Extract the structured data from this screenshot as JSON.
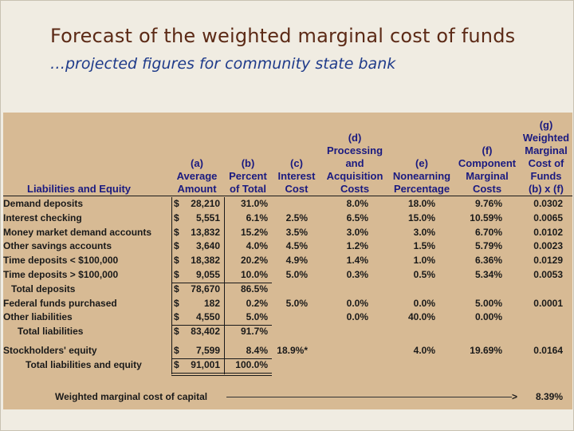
{
  "slide": {
    "title": "Forecast of the weighted marginal cost of funds",
    "subtitle": "…projected figures for community state bank"
  },
  "table": {
    "headers": {
      "label": "Liabilities and Equity",
      "a": "(a)\nAverage\nAmount",
      "b": "(b)\nPercent\nof Total",
      "c": "(c)\nInterest\nCost",
      "d": "(d)\nProcessing\nand\nAcquisition\nCosts",
      "e": "(e)\nNonearning\nPercentage",
      "f": "(f)\nComponent\nMarginal\nCosts",
      "g": "(g)\nWeighted\nMarginal\nCost of\nFunds\n(b) x (f)"
    },
    "rows": [
      {
        "label": "Demand deposits",
        "dollar": "$",
        "amount": "28,210",
        "pct": "31.0%",
        "interest": "",
        "processing": "8.0%",
        "nonearning": "18.0%",
        "component": "9.76%",
        "weighted": "0.0302"
      },
      {
        "label": "Interest checking",
        "dollar": "$",
        "amount": "5,551",
        "pct": "6.1%",
        "interest": "2.5%",
        "processing": "6.5%",
        "nonearning": "15.0%",
        "component": "10.59%",
        "weighted": "0.0065"
      },
      {
        "label": "Money market demand accounts",
        "dollar": "$",
        "amount": "13,832",
        "pct": "15.2%",
        "interest": "3.5%",
        "processing": "3.0%",
        "nonearning": "3.0%",
        "component": "6.70%",
        "weighted": "0.0102"
      },
      {
        "label": "Other savings accounts",
        "dollar": "$",
        "amount": "3,640",
        "pct": "4.0%",
        "interest": "4.5%",
        "processing": "1.2%",
        "nonearning": "1.5%",
        "component": "5.79%",
        "weighted": "0.0023"
      },
      {
        "label": "Time deposits < $100,000",
        "dollar": "$",
        "amount": "18,382",
        "pct": "20.2%",
        "interest": "4.9%",
        "processing": "1.4%",
        "nonearning": "1.0%",
        "component": "6.36%",
        "weighted": "0.0129"
      },
      {
        "label": "Time deposits > $100,000",
        "dollar": "$",
        "amount": "9,055",
        "pct": "10.0%",
        "interest": "5.0%",
        "processing": "0.3%",
        "nonearning": "0.5%",
        "component": "5.34%",
        "weighted": "0.0053"
      },
      {
        "label": "Total deposits",
        "dollar": "$",
        "amount": "78,670",
        "pct": "86.5%",
        "interest": "",
        "processing": "",
        "nonearning": "",
        "component": "",
        "weighted": ""
      },
      {
        "label": "Federal funds purchased",
        "dollar": "$",
        "amount": "182",
        "pct": "0.2%",
        "interest": "5.0%",
        "processing": "0.0%",
        "nonearning": "0.0%",
        "component": "5.00%",
        "weighted": "0.0001"
      },
      {
        "label": "Other liabilities",
        "dollar": "$",
        "amount": "4,550",
        "pct": "5.0%",
        "interest": "",
        "processing": "0.0%",
        "nonearning": "40.0%",
        "component": "0.00%",
        "weighted": ""
      },
      {
        "label": "Total liabilities",
        "dollar": "$",
        "amount": "83,402",
        "pct": "91.7%",
        "interest": "",
        "processing": "",
        "nonearning": "",
        "component": "",
        "weighted": ""
      },
      {
        "label": "Stockholders' equity",
        "dollar": "$",
        "amount": "7,599",
        "pct": "8.4%",
        "interest": "18.9%*",
        "processing": "",
        "nonearning": "4.0%",
        "component": "19.69%",
        "weighted": "0.0164"
      },
      {
        "label": "Total liabilities and equity",
        "dollar": "$",
        "amount": "91,001",
        "pct": "100.0%",
        "interest": "",
        "processing": "",
        "nonearning": "",
        "component": "",
        "weighted": ""
      }
    ],
    "footer": {
      "label": "Weighted marginal cost of capital",
      "arrow": ">",
      "value": "8.39%"
    }
  }
}
